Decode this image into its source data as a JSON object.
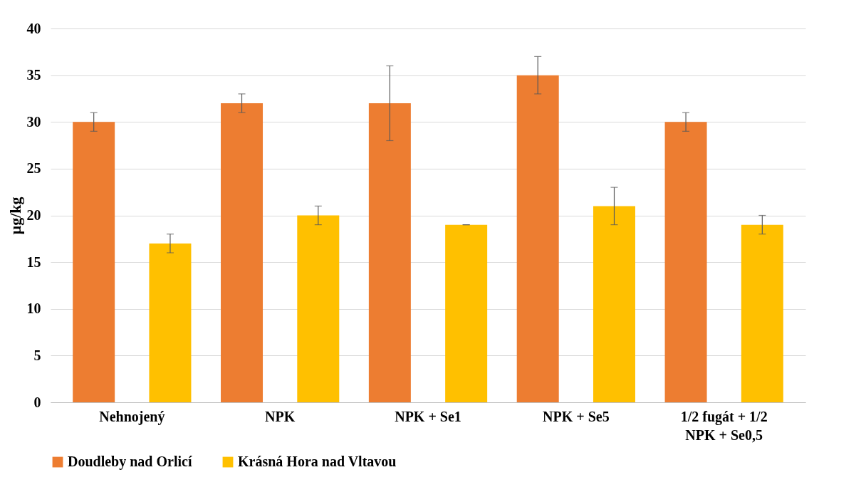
{
  "chart_data": {
    "type": "bar",
    "ylabel": "µg/kg",
    "categories": [
      "Nehnojený",
      "NPK",
      "NPK + Se1",
      "NPK + Se5",
      "1/2 fugát + 1/2 NPK + Se0,5"
    ],
    "series": [
      {
        "name": "Doudleby nad Orlicí",
        "color": "#ed7d31",
        "values": [
          30,
          32,
          32,
          35,
          30
        ],
        "errors": [
          1,
          1,
          4,
          2,
          1
        ]
      },
      {
        "name": "Krásná Hora nad Vltavou",
        "color": "#ffc000",
        "values": [
          17,
          20,
          19,
          21,
          19
        ],
        "errors": [
          1,
          1,
          0,
          2,
          1
        ]
      }
    ],
    "ylim": [
      0,
      40
    ],
    "yticks": [
      0,
      5,
      10,
      15,
      20,
      25,
      30,
      35,
      40
    ],
    "grid": "y",
    "legend": "bottom"
  }
}
